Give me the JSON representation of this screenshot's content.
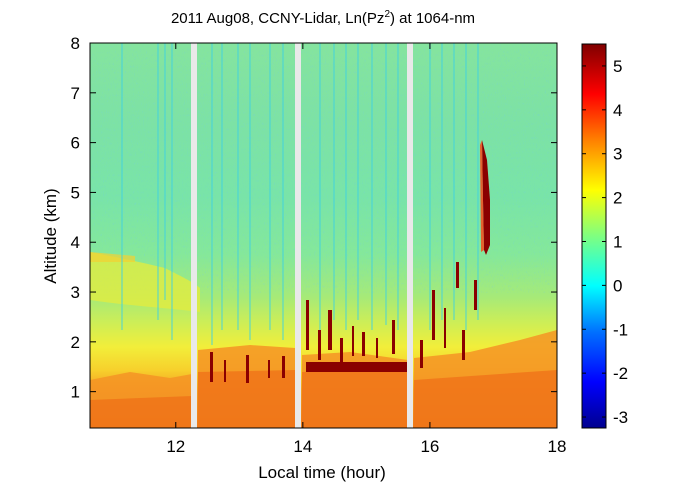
{
  "chart_data": {
    "type": "heatmap",
    "title": {
      "prefix": "2011 Aug08, CCNY-Lidar, Ln(Pz",
      "superscript": "2",
      "suffix": ") at 1064-nm"
    },
    "xlabel": "Local time (hour)",
    "ylabel": "Altitude (km)",
    "x_ticks": [
      12,
      14,
      16,
      18
    ],
    "y_ticks": [
      1,
      2,
      3,
      4,
      5,
      6,
      7,
      8
    ],
    "xlim": [
      10.65,
      18
    ],
    "ylim": [
      0.27,
      8
    ],
    "colorbar": {
      "ticks": [
        5,
        4,
        3,
        2,
        1,
        0,
        -1,
        -2,
        -3
      ],
      "range": [
        -3.25,
        5.5
      ],
      "colormap": "jet"
    },
    "data_gaps_hours": [
      [
        12.28,
        12.38
      ],
      [
        13.92,
        14.02
      ],
      [
        15.62,
        15.72
      ]
    ],
    "description_features": {
      "boundary_layer_top_km": 1.5,
      "aerosol_layer_km": [
        2.5,
        3.9
      ],
      "cloud_plume": {
        "x": 16.85,
        "y_range": [
          3.7,
          6.0
        ]
      }
    }
  }
}
